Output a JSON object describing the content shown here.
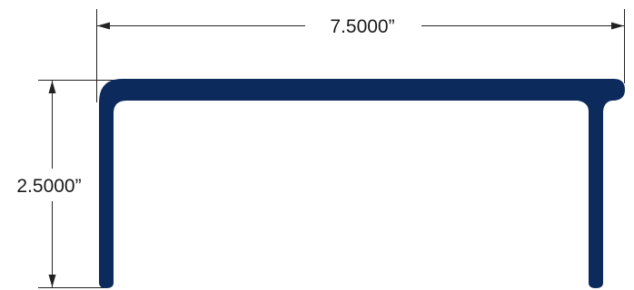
{
  "dimensions": {
    "width": "7.5000”",
    "height": "2.5000”"
  },
  "colors": {
    "profile": "#0c2a5c",
    "dimension_lines": "#222222",
    "background": "#ffffff"
  }
}
